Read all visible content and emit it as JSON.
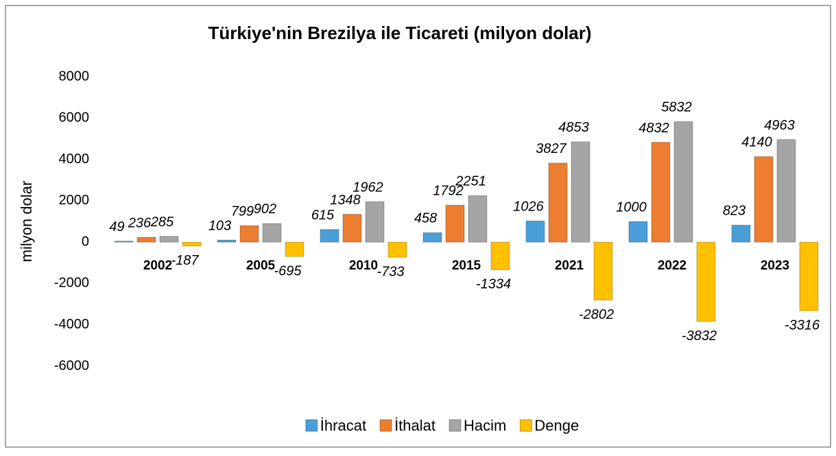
{
  "chart_data": {
    "type": "bar",
    "title": "Türkiye'nin Brezilya ile Ticareti (milyon dolar)",
    "ylabel": "milyon dolar",
    "categories": [
      "2002",
      "2005",
      "2010",
      "2015",
      "2021",
      "2022",
      "2023"
    ],
    "series": [
      {
        "name": "İhracat",
        "color": "#4a9fd8",
        "values": [
          49,
          103,
          615,
          458,
          1026,
          1000,
          823
        ]
      },
      {
        "name": "İthalat",
        "color": "#ed7d31",
        "values": [
          236,
          799,
          1348,
          1792,
          3827,
          4832,
          4140
        ]
      },
      {
        "name": "Hacim",
        "color": "#a5a5a5",
        "values": [
          285,
          902,
          1962,
          2251,
          4853,
          5832,
          4963
        ]
      },
      {
        "name": "Denge",
        "color": "#ffc000",
        "values": [
          -187,
          -695,
          -733,
          -1334,
          -2802,
          -3832,
          -3316
        ]
      }
    ],
    "ylim": [
      -6000,
      8000
    ],
    "yticks": [
      -6000,
      -4000,
      -2000,
      0,
      2000,
      4000,
      6000,
      8000
    ],
    "grid": false,
    "legend": "bottom"
  }
}
